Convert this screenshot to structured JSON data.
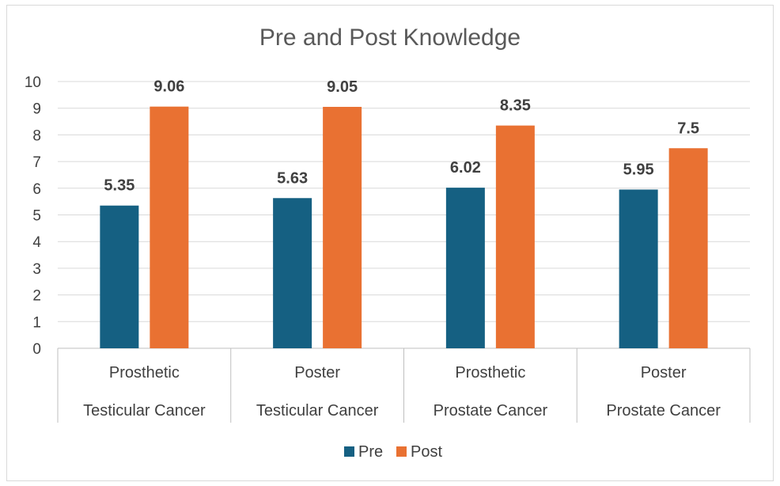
{
  "chart_data": {
    "type": "bar",
    "title": "Pre and Post Knowledge",
    "categories": [
      [
        "Prosthetic",
        "Testicular Cancer"
      ],
      [
        "Poster",
        "Testicular Cancer"
      ],
      [
        "Prosthetic",
        "Prostate Cancer"
      ],
      [
        "Poster",
        "Prostate Cancer"
      ]
    ],
    "series": [
      {
        "name": "Pre",
        "color": "#156082",
        "values": [
          5.35,
          5.63,
          6.02,
          5.95
        ],
        "labels": [
          "5.35",
          "5.63",
          "6.02",
          "5.95"
        ]
      },
      {
        "name": "Post",
        "color": "#E97132",
        "values": [
          9.06,
          9.05,
          8.35,
          7.5
        ],
        "labels": [
          "9.06",
          "9.05",
          "8.35",
          "7.5"
        ]
      }
    ],
    "ylim": [
      0,
      10
    ],
    "yticks": [
      "0",
      "1",
      "2",
      "3",
      "4",
      "5",
      "6",
      "7",
      "8",
      "9",
      "10"
    ],
    "grid": true,
    "legend_position": "bottom"
  }
}
